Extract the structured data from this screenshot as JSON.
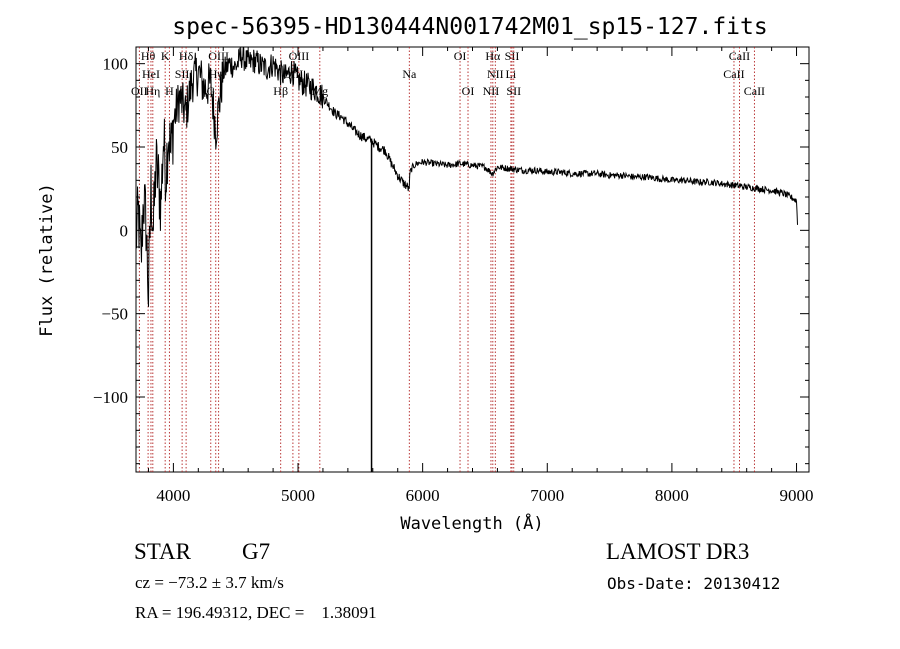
{
  "chart_data": {
    "type": "line",
    "title": "spec-56395-HD130444N001742M01_sp15-127.fits",
    "xlabel": "Wavelength (Å)",
    "ylabel": "Flux (relative)",
    "xlim": [
      3700,
      9100
    ],
    "ylim": [
      -145,
      110
    ],
    "xticks": [
      4000,
      5000,
      6000,
      7000,
      8000,
      9000
    ],
    "xtick_labels": [
      "4000",
      "5000",
      "6000",
      "7000",
      "8000",
      "9000"
    ],
    "yticks": [
      -100,
      -50,
      0,
      50,
      100
    ],
    "ytick_labels": [
      "−100",
      "−50",
      "0",
      "50",
      "100"
    ],
    "series": [
      {
        "name": "flux",
        "x": [
          3700,
          3720,
          3740,
          3760,
          3780,
          3800,
          3820,
          3840,
          3860,
          3880,
          3900,
          3920,
          3940,
          3960,
          3980,
          4000,
          4050,
          4100,
          4150,
          4200,
          4250,
          4300,
          4340,
          4400,
          4450,
          4500,
          4550,
          4600,
          4650,
          4700,
          4750,
          4800,
          4850,
          4900,
          4950,
          5000,
          5050,
          5100,
          5150,
          5200,
          5250,
          5300,
          5350,
          5400,
          5450,
          5500,
          5550,
          5580,
          5600,
          5650,
          5700,
          5750,
          5800,
          5850,
          5880,
          5890,
          5900,
          5920,
          5950,
          6000,
          6100,
          6200,
          6300,
          6400,
          6500,
          6560,
          6600,
          6700,
          6800,
          6900,
          7000,
          7100,
          7200,
          7300,
          7400,
          7500,
          7600,
          7700,
          7800,
          7900,
          8000,
          8100,
          8200,
          8300,
          8400,
          8500,
          8600,
          8700,
          8800,
          8900,
          8950,
          9000,
          9010
        ],
        "y": [
          -5,
          10,
          -20,
          20,
          5,
          -40,
          25,
          0,
          40,
          30,
          15,
          55,
          35,
          60,
          45,
          65,
          80,
          70,
          90,
          95,
          85,
          88,
          60,
          95,
          100,
          98,
          105,
          100,
          102,
          99,
          97,
          100,
          95,
          92,
          96,
          90,
          88,
          86,
          84,
          80,
          75,
          70,
          68,
          64,
          60,
          57,
          55,
          54,
          53,
          50,
          48,
          40,
          33,
          28,
          26,
          24,
          35,
          38,
          40,
          41,
          40,
          39,
          40,
          39,
          38,
          34,
          38,
          37,
          36,
          36,
          35,
          35,
          34,
          34,
          34,
          33,
          33,
          32,
          32,
          31,
          30,
          30,
          29,
          29,
          28,
          27,
          26,
          25,
          24,
          22,
          20,
          18,
          0
        ]
      }
    ],
    "drop_line": {
      "x": 5590,
      "y_from": 55,
      "y_to": -145
    },
    "line_markers": [
      {
        "label": "Hθ",
        "x": 3797,
        "row": 0
      },
      {
        "label": "K",
        "x": 3934,
        "row": 0
      },
      {
        "label": "Hδ",
        "x": 4102,
        "row": 0
      },
      {
        "label": "OIII",
        "x": 4363,
        "row": 0
      },
      {
        "label": "OIII",
        "x": 5007,
        "row": 0
      },
      {
        "label": "OI",
        "x": 6300,
        "row": 0
      },
      {
        "label": "Hα",
        "x": 6563,
        "row": 0
      },
      {
        "label": "SII",
        "x": 6717,
        "row": 0
      },
      {
        "label": "CaII",
        "x": 8542,
        "row": 0
      },
      {
        "label": "HeI",
        "x": 3820,
        "row": 1
      },
      {
        "label": "SII",
        "x": 4070,
        "row": 1
      },
      {
        "label": "Hγ",
        "x": 4340,
        "row": 1
      },
      {
        "label": "OIII",
        "x": 4959,
        "row": 1
      },
      {
        "label": "Na",
        "x": 5893,
        "row": 1
      },
      {
        "label": "NII",
        "x": 6583,
        "row": 1
      },
      {
        "label": "Li",
        "x": 6708,
        "row": 1
      },
      {
        "label": "CaII",
        "x": 8498,
        "row": 1
      },
      {
        "label": "OII",
        "x": 3727,
        "row": 2
      },
      {
        "label": "Hη",
        "x": 3835,
        "row": 2
      },
      {
        "label": "H",
        "x": 3968,
        "row": 2
      },
      {
        "label": "G",
        "x": 4300,
        "row": 2
      },
      {
        "label": "Hβ",
        "x": 4861,
        "row": 2
      },
      {
        "label": "Mg",
        "x": 5175,
        "row": 2
      },
      {
        "label": "OI",
        "x": 6364,
        "row": 2
      },
      {
        "label": "NII",
        "x": 6548,
        "row": 2
      },
      {
        "label": "SII",
        "x": 6731,
        "row": 2
      },
      {
        "label": "CaII",
        "x": 8662,
        "row": 2
      }
    ],
    "line_color": "#000000",
    "marker_color": "#b22222"
  },
  "info": {
    "object_class": "STAR",
    "subclass": "G7",
    "survey": "LAMOST DR3",
    "redshift_text": "cz = −73.2 ± 3.7 km/s",
    "obs_date_text": "Obs-Date: 20130412",
    "coord_text": "RA = 196.49312, DEC =    1.38091"
  }
}
